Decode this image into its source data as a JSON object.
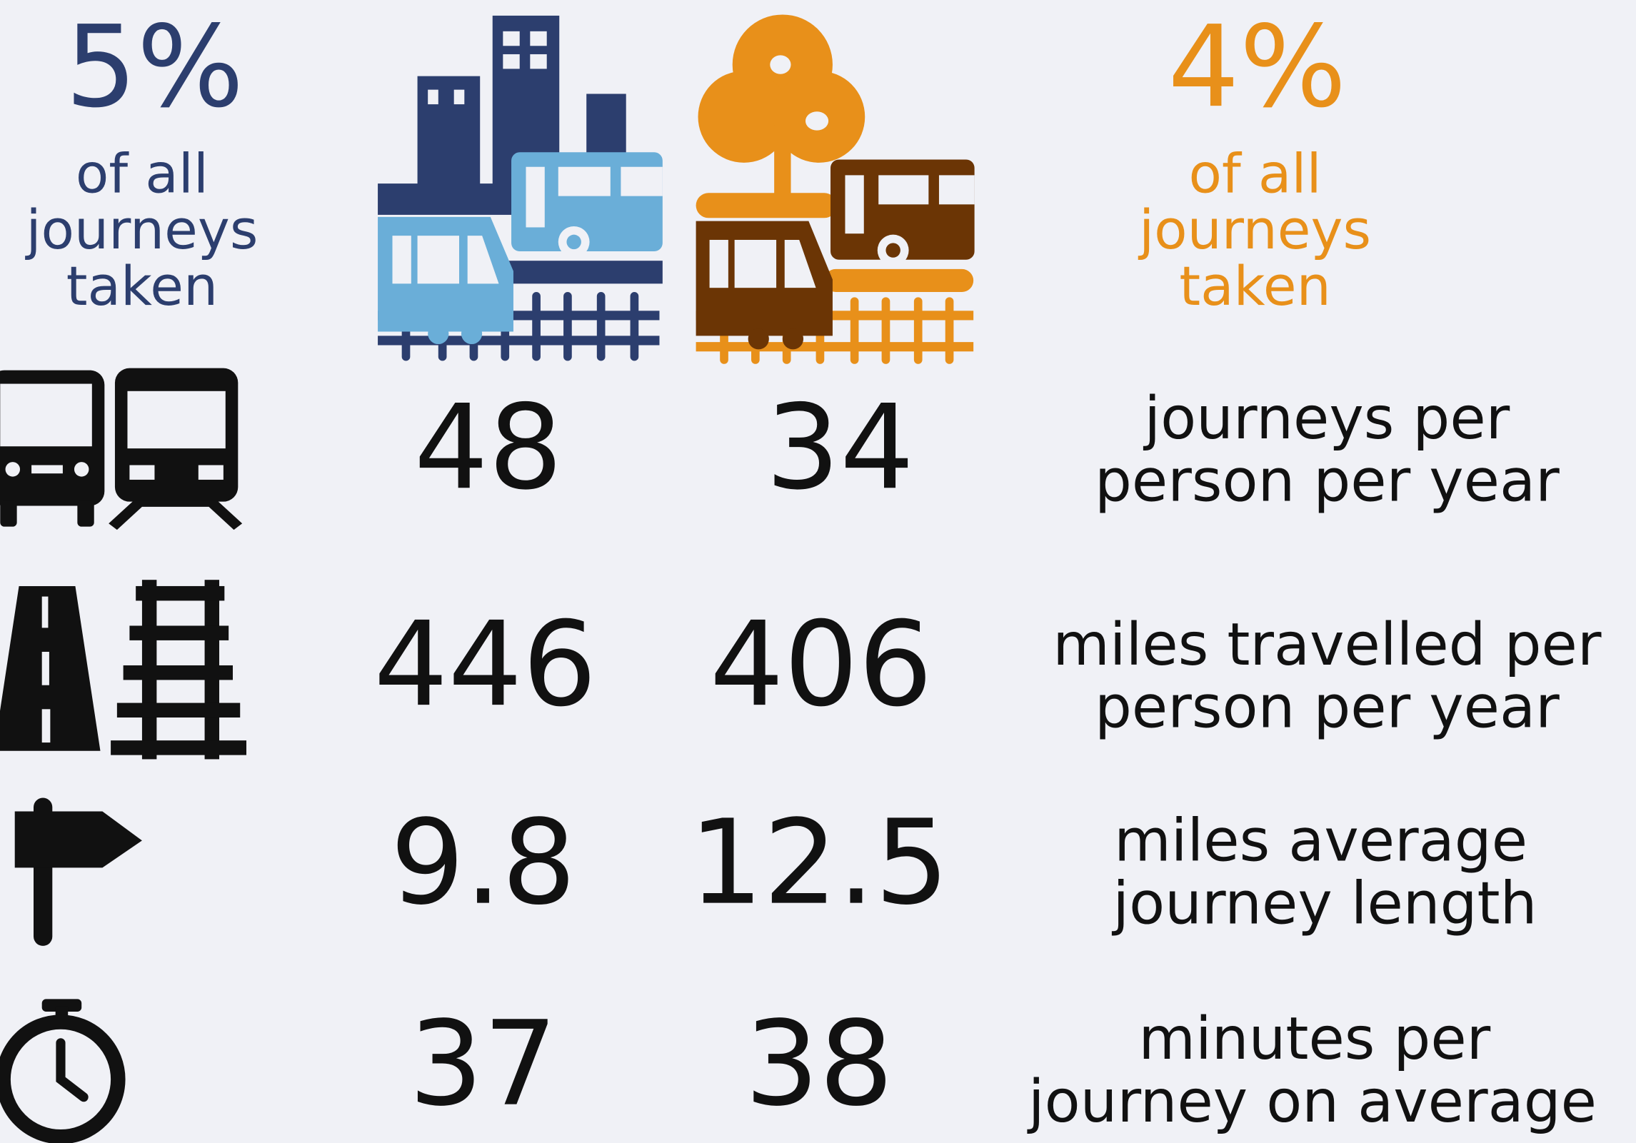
{
  "header": {
    "urban": {
      "percent": "5%",
      "caption": [
        "of all",
        "journeys",
        "taken"
      ]
    },
    "rural": {
      "percent": "4%",
      "caption": [
        "of all",
        "journeys",
        "taken"
      ]
    }
  },
  "rows": [
    {
      "urban": "48",
      "rural": "34",
      "label": [
        "journeys per",
        "person per year"
      ]
    },
    {
      "urban": "446",
      "rural": "406",
      "label": [
        "miles travelled per",
        "person per year"
      ]
    },
    {
      "urban": "9.8",
      "rural": "12.5",
      "label": [
        "miles average",
        "journey length"
      ]
    },
    {
      "urban": "37",
      "rural": "38",
      "label": [
        "minutes per",
        "journey on average"
      ]
    }
  ]
}
